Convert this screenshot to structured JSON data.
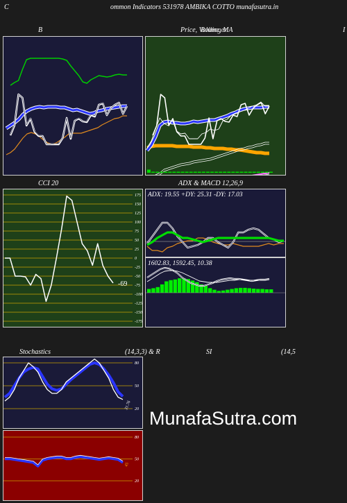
{
  "header": {
    "left_letter": "C",
    "title": "ommon  Indicators 531978  AMBIKA COTTO munafasutra.in"
  },
  "labels": {
    "bollinger": "B",
    "price_ma": "Price,  Volume,  MA",
    "price_ma_overlay": "Bollinger",
    "right_edge": "I",
    "cci": "CCI 20",
    "adx_macd": "ADX  & MACD 12,26,9",
    "stoch_left": "Stochastics",
    "stoch_mid": "(14,3,3) & R",
    "si": "SI",
    "si_params": "(14,5"
  },
  "watermark": "MunafaSutra.com",
  "colors": {
    "bg": "#1c1c1c",
    "navy": "#1a1a38",
    "green_panel": "#1e4019",
    "red_panel": "#8b0000",
    "orange": "#ffa500",
    "blue": "#2a35ff",
    "green_line": "#00dd00"
  },
  "chart_data": [
    {
      "id": "bollinger",
      "type": "line",
      "title": "B",
      "series": [
        {
          "role": "upper",
          "values": [
            70,
            66,
            63,
            47,
            33,
            31,
            31,
            31,
            31,
            31,
            31,
            31,
            31,
            32,
            34,
            42,
            49,
            56,
            65,
            67,
            62,
            59,
            56,
            57,
            58,
            57,
            55,
            54,
            55,
            55
          ]
        },
        {
          "role": "middle",
          "values": [
            132,
            128,
            124,
            119,
            112,
            107,
            104,
            102,
            101,
            102,
            101,
            101,
            101,
            102,
            102,
            104,
            106,
            105,
            107,
            109,
            111,
            110,
            107,
            106,
            104,
            103,
            102,
            101,
            100,
            100
          ]
        },
        {
          "role": "lower",
          "values": [
            170,
            167,
            162,
            154,
            146,
            140,
            138,
            140,
            144,
            149,
            153,
            155,
            153,
            149,
            145,
            140,
            139,
            139,
            139,
            137,
            135,
            133,
            131,
            127,
            124,
            121,
            118,
            117,
            114,
            114
          ]
        },
        {
          "role": "price",
          "values": [
            142,
            128,
            83,
            88,
            128,
            118,
            137,
            143,
            143,
            155,
            155,
            155,
            155,
            146,
            117,
            147,
            121,
            118,
            122,
            123,
            113,
            115,
            98,
            96,
            113,
            103,
            98,
            95,
            111,
            100
          ]
        },
        {
          "role": "price-dark",
          "values": [
            141,
            127,
            83,
            88,
            127,
            117,
            136,
            142,
            143,
            155,
            155,
            154,
            154,
            146,
            117,
            146,
            121,
            117,
            122,
            122,
            112,
            114,
            98,
            95,
            113,
            103,
            98,
            95,
            111,
            100
          ]
        }
      ]
    },
    {
      "id": "price_ma",
      "type": "line",
      "title": "Price,  Volume,  MA",
      "series": [
        {
          "role": "price",
          "values": [
            142,
            128,
            83,
            88,
            128,
            118,
            137,
            143,
            143,
            155,
            155,
            155,
            155,
            146,
            117,
            147,
            121,
            118,
            122,
            123,
            113,
            115,
            98,
            96,
            113,
            103,
            98,
            95,
            111,
            100
          ]
        },
        {
          "role": "ma-short",
          "values": [
            160,
            150,
            133,
            117,
            125,
            128,
            120,
            136,
            140,
            139,
            147,
            147,
            147,
            140,
            138,
            133,
            135,
            133,
            121,
            119,
            113,
            110,
            108,
            106,
            103,
            100,
            98,
            94,
            100,
            100
          ]
        },
        {
          "role": "ma-mid",
          "values": [
            164,
            156,
            144,
            128,
            123,
            122,
            124,
            124,
            125,
            125,
            124,
            122,
            123,
            122,
            121,
            120,
            120,
            118,
            116,
            114,
            111,
            109,
            106,
            104,
            103,
            102,
            102,
            102,
            101,
            101
          ]
        },
        {
          "role": "ma-orange",
          "values": [
            160,
            158,
            157,
            157,
            157,
            157,
            157,
            158,
            158,
            158,
            158,
            159,
            159,
            159,
            160,
            160,
            161,
            161,
            161,
            162,
            162,
            163,
            163,
            164,
            165,
            166,
            167,
            167,
            168,
            168
          ]
        },
        {
          "role": "ma-long-1",
          "values": [
            210,
            204,
            199,
            196,
            191,
            189,
            187,
            185,
            183,
            182,
            181,
            179,
            178,
            177,
            176,
            175,
            173,
            171,
            169,
            167,
            165,
            163,
            161,
            160,
            158,
            157,
            155,
            154,
            152,
            152
          ]
        },
        {
          "role": "ma-long-2",
          "values": [
            213,
            207,
            202,
            199,
            194,
            192,
            190,
            188,
            186,
            185,
            184,
            182,
            181,
            180,
            179,
            178,
            176,
            174,
            172,
            170,
            168,
            166,
            164,
            163,
            161,
            160,
            158,
            157,
            155,
            155
          ]
        },
        {
          "role": "ma-pink",
          "values": [
            204,
            203,
            203,
            204,
            205,
            205,
            205,
            205,
            205,
            205,
            205,
            205,
            205,
            205,
            205,
            205,
            204,
            204,
            204,
            204,
            204,
            204,
            203,
            202,
            201,
            200,
            199,
            198,
            197,
            196
          ]
        },
        {
          "role": "volume",
          "values": [
            3,
            1,
            1,
            1,
            1,
            1,
            1,
            1,
            1,
            1,
            1,
            1,
            1,
            1,
            1,
            1,
            1,
            1,
            1,
            1,
            1,
            1,
            1,
            1,
            1,
            1,
            1,
            1,
            1,
            1
          ]
        }
      ]
    },
    {
      "id": "cci",
      "type": "line",
      "title": "CCI 20",
      "last_value": "-69",
      "ylim": [
        -190,
        190
      ],
      "y_ticks": [
        175,
        150,
        125,
        100,
        75,
        50,
        25,
        0,
        -25,
        -50,
        -75,
        -100,
        -125,
        -150,
        -175
      ],
      "series": [
        {
          "name": "CCI",
          "values": [
            0,
            0,
            -50,
            -50,
            -52,
            -75,
            -45,
            -57,
            -120,
            -75,
            0,
            80,
            172,
            160,
            100,
            40,
            20,
            -20,
            40,
            -20,
            -50,
            -69
          ]
        }
      ]
    },
    {
      "id": "adx",
      "type": "line",
      "title": "ADX  & MACD 12,26,9",
      "adx_text": "ADX: 19.55  +DY: 25.31  -DY: 17.03",
      "series": [
        {
          "role": "adx",
          "values": [
            80,
            76,
            70,
            66,
            62,
            62,
            66,
            70,
            70,
            72,
            74,
            76,
            74,
            72,
            70,
            70,
            70,
            70,
            70,
            70,
            70,
            70,
            70,
            70,
            70,
            72,
            74,
            74
          ]
        },
        {
          "role": "plus-di",
          "values": [
            78,
            68,
            58,
            48,
            48,
            56,
            68,
            76,
            84,
            82,
            80,
            76,
            70,
            70,
            76,
            80,
            84,
            76,
            62,
            62,
            58,
            56,
            58,
            64,
            70,
            72,
            76,
            74
          ]
        },
        {
          "role": "minus-di",
          "values": [
            82,
            88,
            88,
            90,
            84,
            82,
            78,
            76,
            74,
            74,
            70,
            70,
            72,
            76,
            78,
            80,
            80,
            78,
            80,
            82,
            82,
            82,
            82,
            80,
            78,
            80,
            78,
            78
          ]
        }
      ]
    },
    {
      "id": "macd",
      "type": "bar",
      "macd_text": "1602.83,   1592.45,   10.38",
      "histogram": [
        10,
        12,
        15,
        22,
        30,
        33,
        35,
        38,
        38,
        36,
        32,
        28,
        22,
        18,
        12,
        8,
        5,
        6,
        8,
        10,
        12,
        13,
        13,
        12,
        11,
        10,
        10,
        9,
        9
      ],
      "series": [
        {
          "role": "macd",
          "values": [
            28,
            24,
            20,
            16,
            14,
            15,
            18,
            22,
            28,
            32,
            36,
            38,
            40,
            40,
            38,
            36,
            33,
            31,
            30,
            29,
            30,
            30,
            31,
            32,
            33,
            32,
            31,
            31,
            30
          ]
        },
        {
          "role": "signal",
          "values": [
            34,
            30,
            26,
            22,
            19,
            18,
            18,
            19,
            21,
            24,
            27,
            30,
            33,
            34,
            35,
            35,
            35,
            34,
            33,
            32,
            32,
            31,
            31,
            32,
            32,
            32,
            32,
            32,
            31
          ]
        }
      ]
    },
    {
      "id": "stochastics",
      "type": "line",
      "title": "Stochastics (14,3,3)",
      "last_value": "31.76",
      "y_ticks": [
        80,
        50,
        20
      ],
      "series": [
        {
          "role": "k",
          "values": [
            30,
            35,
            45,
            60,
            70,
            80,
            75,
            68,
            55,
            45,
            40,
            40,
            45,
            55,
            60,
            65,
            70,
            75,
            80,
            85,
            80,
            70,
            60,
            45,
            35,
            32
          ]
        },
        {
          "role": "d",
          "values": [
            35,
            40,
            50,
            60,
            68,
            72,
            74,
            72,
            62,
            52,
            46,
            44,
            46,
            52,
            58,
            63,
            68,
            73,
            78,
            80,
            78,
            72,
            64,
            54,
            42,
            36
          ]
        }
      ]
    },
    {
      "id": "rsi",
      "type": "line",
      "title": "SI",
      "last_value": "45",
      "y_ticks": [
        80,
        50,
        20
      ],
      "series": [
        {
          "role": "rsi",
          "values": [
            50,
            50,
            49,
            48,
            47,
            46,
            45,
            40,
            48,
            50,
            51,
            52,
            52,
            50,
            50,
            52,
            53,
            52,
            51,
            50,
            49,
            50,
            51,
            50,
            49,
            45
          ]
        }
      ]
    }
  ]
}
